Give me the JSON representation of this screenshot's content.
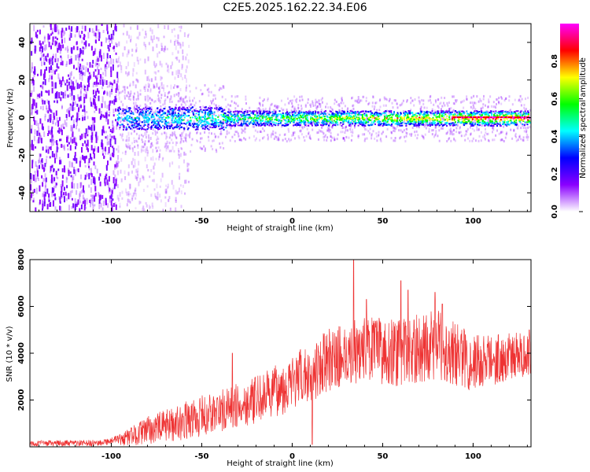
{
  "title": "C2E5.2025.162.22.34.E06",
  "chart_data": [
    {
      "type": "heatmap",
      "name": "spectrogram",
      "xlabel": "Height of straight line (km)",
      "ylabel": "Frequency (Hz)",
      "xlim": [
        -145,
        132
      ],
      "ylim": [
        -50,
        50
      ],
      "xticks": [
        "-100",
        "-50",
        "0",
        "50",
        "100"
      ],
      "xtick_values": [
        -100,
        -50,
        0,
        50,
        100
      ],
      "yticks": [
        "-40",
        "-20",
        "0",
        "20",
        "40"
      ],
      "ytick_values": [
        -40,
        -20,
        0,
        20,
        40
      ],
      "colorbar": {
        "label": "Normalized spectral amplitude",
        "range": [
          0,
          1
        ],
        "ticks": [
          "0.0",
          "0.2",
          "0.4",
          "0.6",
          "0.8"
        ],
        "tick_values": [
          0.0,
          0.2,
          0.4,
          0.6,
          0.8
        ],
        "colors": [
          "#ffffff",
          "#8a00ff",
          "#0000ff",
          "#00ffff",
          "#00ff00",
          "#ffff00",
          "#ff0000",
          "#ff00ff"
        ]
      },
      "grid": false,
      "description_values": {
        "noise_region_x": [
          -145,
          -97
        ],
        "signal_start_x": -97,
        "signal_center_freq": 0,
        "signal_band_halfwidth_hz": [
          6,
          4
        ]
      }
    },
    {
      "type": "line",
      "name": "snr",
      "xlabel": "Height of straight line (km)",
      "ylabel": "SNR (10 * v/v)",
      "xlim": [
        -145,
        132
      ],
      "ylim": [
        0,
        8000
      ],
      "xticks": [
        "-100",
        "-50",
        "0",
        "50",
        "100"
      ],
      "xtick_values": [
        -100,
        -50,
        0,
        50,
        100
      ],
      "yticks": [
        "2000",
        "4000",
        "6000",
        "8000"
      ],
      "ytick_values": [
        2000,
        4000,
        6000,
        8000
      ],
      "color": "#ee3333",
      "grid": false,
      "trend_x": [
        -145,
        -110,
        -95,
        -80,
        -60,
        -40,
        -20,
        0,
        20,
        40,
        60,
        80,
        100,
        132
      ],
      "trend_y": [
        150,
        150,
        300,
        700,
        1100,
        1500,
        2000,
        2700,
        3700,
        4200,
        4000,
        4400,
        3600,
        4000
      ],
      "spread_x": [
        -145,
        -100,
        -80,
        -50,
        -20,
        10,
        40,
        80,
        132
      ],
      "spread_y": [
        120,
        150,
        600,
        900,
        1000,
        1300,
        1400,
        1500,
        900
      ],
      "peaks": [
        [
          -33,
          4000
        ],
        [
          34,
          8000
        ],
        [
          41,
          6300
        ],
        [
          60,
          7100
        ],
        [
          64,
          6700
        ],
        [
          79,
          6600
        ],
        [
          83,
          6100
        ],
        [
          131,
          5000
        ]
      ],
      "spikes": [
        [
          -32,
          2200
        ],
        [
          11,
          100
        ]
      ]
    }
  ]
}
